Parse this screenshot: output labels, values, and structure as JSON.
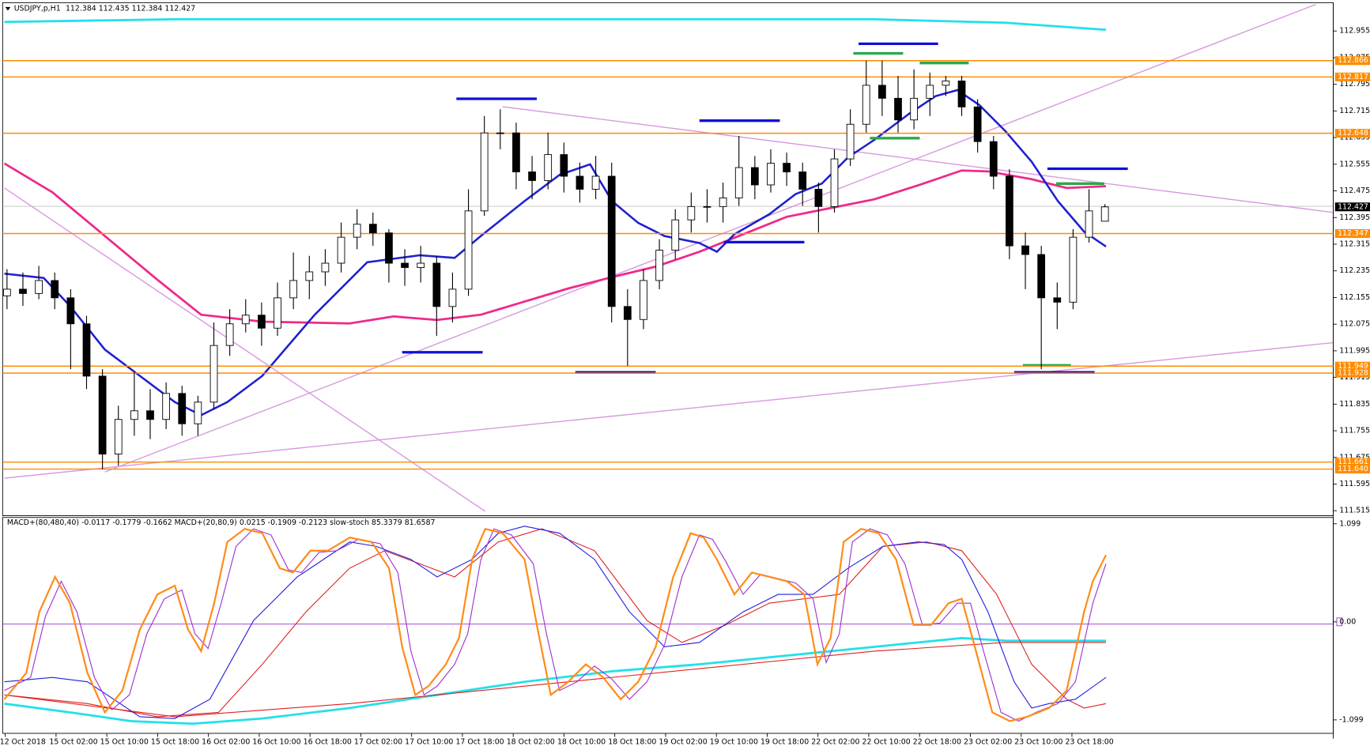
{
  "header": {
    "symbol": "USDJPY,p,H1",
    "quotes": "112.384 112.435 112.384 112.427"
  },
  "chart_data": [
    {
      "type": "candlestick",
      "up_color": "#ffffff",
      "down_color": "#000000",
      "level_color": "#ff8c00",
      "current": 112.427,
      "ylim": [
        111.5,
        113.04
      ],
      "yticks": [
        112.955,
        112.875,
        112.795,
        112.715,
        112.635,
        112.555,
        112.475,
        112.395,
        112.315,
        112.235,
        112.155,
        112.075,
        111.995,
        111.915,
        111.835,
        111.755,
        111.675,
        111.595,
        111.515
      ],
      "levels": [
        112.866,
        112.817,
        112.648,
        112.347,
        111.949,
        111.928,
        111.661,
        {
          "value": 111.64,
          "label": "111.640"
        }
      ],
      "categories": [
        "12 Oct 2018",
        "15 Oct 02:00",
        "15 Oct 10:00",
        "15 Oct 18:00",
        "16 Oct 02:00",
        "16 Oct 10:00",
        "16 Oct 18:00",
        "17 Oct 02:00",
        "17 Oct 10:00",
        "17 Oct 18:00",
        "18 Oct 02:00",
        "18 Oct 10:00",
        "18 Oct 18:00",
        "19 Oct 02:00",
        "19 Oct 10:00",
        "19 Oct 18:00",
        "22 Oct 02:00",
        "22 Oct 10:00",
        "22 Oct 18:00",
        "23 Oct 02:00",
        "23 Oct 10:00",
        "23 Oct 18:00"
      ],
      "candles": [
        [
          112.16,
          112.24,
          112.12,
          112.18
        ],
        [
          112.18,
          112.23,
          112.13,
          112.167
        ],
        [
          112.167,
          112.25,
          112.15,
          112.206
        ],
        [
          112.206,
          112.23,
          112.12,
          112.154
        ],
        [
          112.154,
          112.18,
          111.94,
          112.076
        ],
        [
          112.076,
          112.1,
          111.88,
          111.919
        ],
        [
          111.919,
          111.94,
          111.64,
          111.685
        ],
        [
          111.685,
          111.83,
          111.65,
          111.789
        ],
        [
          111.789,
          111.93,
          111.74,
          111.815
        ],
        [
          111.815,
          111.88,
          111.73,
          111.789
        ],
        [
          111.789,
          111.9,
          111.76,
          111.867
        ],
        [
          111.867,
          111.89,
          111.74,
          111.776
        ],
        [
          111.776,
          111.86,
          111.74,
          111.841
        ],
        [
          111.841,
          112.08,
          111.82,
          112.011
        ],
        [
          112.011,
          112.12,
          111.98,
          112.076
        ],
        [
          112.076,
          112.15,
          112.05,
          112.102
        ],
        [
          112.102,
          112.14,
          112.01,
          112.063
        ],
        [
          112.063,
          112.2,
          112.04,
          112.154
        ],
        [
          112.154,
          112.29,
          112.12,
          112.206
        ],
        [
          112.206,
          112.28,
          112.15,
          112.232
        ],
        [
          112.232,
          112.3,
          112.19,
          112.258
        ],
        [
          112.258,
          112.38,
          112.23,
          112.336
        ],
        [
          112.336,
          112.42,
          112.3,
          112.375
        ],
        [
          112.375,
          112.41,
          112.31,
          112.349
        ],
        [
          112.349,
          112.36,
          112.2,
          112.258
        ],
        [
          112.258,
          112.3,
          112.19,
          112.245
        ],
        [
          112.245,
          112.31,
          112.2,
          112.258
        ],
        [
          112.258,
          112.28,
          112.04,
          112.128
        ],
        [
          112.128,
          112.23,
          112.08,
          112.18
        ],
        [
          112.18,
          112.48,
          112.16,
          112.415
        ],
        [
          112.415,
          112.7,
          112.4,
          112.649
        ],
        [
          112.649,
          112.72,
          112.6,
          112.649
        ],
        [
          112.649,
          112.68,
          112.48,
          112.532
        ],
        [
          112.532,
          112.58,
          112.45,
          112.506
        ],
        [
          112.506,
          112.65,
          112.48,
          112.584
        ],
        [
          112.584,
          112.62,
          112.47,
          112.519
        ],
        [
          112.519,
          112.56,
          112.44,
          112.48
        ],
        [
          112.48,
          112.58,
          112.45,
          112.519
        ],
        [
          112.519,
          112.56,
          112.08,
          112.128
        ],
        [
          112.128,
          112.18,
          111.95,
          112.089
        ],
        [
          112.089,
          112.24,
          112.06,
          112.206
        ],
        [
          112.206,
          112.33,
          112.18,
          112.297
        ],
        [
          112.297,
          112.42,
          112.27,
          112.388
        ],
        [
          112.388,
          112.47,
          112.35,
          112.428
        ],
        [
          112.428,
          112.48,
          112.38,
          112.428
        ],
        [
          112.428,
          112.5,
          112.38,
          112.454
        ],
        [
          112.454,
          112.64,
          112.43,
          112.545
        ],
        [
          112.545,
          112.58,
          112.45,
          112.493
        ],
        [
          112.493,
          112.6,
          112.47,
          112.558
        ],
        [
          112.558,
          112.59,
          112.49,
          112.532
        ],
        [
          112.532,
          112.56,
          112.43,
          112.48
        ],
        [
          112.48,
          112.5,
          112.35,
          112.428
        ],
        [
          112.428,
          112.6,
          112.41,
          112.571
        ],
        [
          112.571,
          112.72,
          112.55,
          112.675
        ],
        [
          112.675,
          112.866,
          112.65,
          112.792
        ],
        [
          112.792,
          112.866,
          112.7,
          112.753
        ],
        [
          112.753,
          112.82,
          112.65,
          112.688
        ],
        [
          112.688,
          112.84,
          112.66,
          112.753
        ],
        [
          112.753,
          112.83,
          112.7,
          112.792
        ],
        [
          112.792,
          112.82,
          112.76,
          112.805
        ],
        [
          112.805,
          112.82,
          112.7,
          112.727
        ],
        [
          112.727,
          112.75,
          112.59,
          112.623
        ],
        [
          112.623,
          112.64,
          112.48,
          112.519
        ],
        [
          112.519,
          112.54,
          112.27,
          112.31
        ],
        [
          112.31,
          112.35,
          112.18,
          112.284
        ],
        [
          112.284,
          112.31,
          111.94,
          112.154
        ],
        [
          112.154,
          112.2,
          112.06,
          112.141
        ],
        [
          112.141,
          112.36,
          112.12,
          112.336
        ],
        [
          112.336,
          112.48,
          112.32,
          112.415
        ],
        [
          112.384,
          112.435,
          112.384,
          112.427
        ]
      ]
    },
    {
      "type": "oscillator",
      "title": "MACD+(80,480,40) -0.0117 -0.1779 -0.1662  MACD+(20,80,9) 0.0215 -0.1909 -0.2123  slow-stoch 85.3379 81.6587",
      "ylim": [
        -1.25,
        1.17
      ],
      "yticks": [
        1.099,
        {
          "value": 0,
          "label": "0.00"
        },
        -1.099
      ]
    }
  ]
}
